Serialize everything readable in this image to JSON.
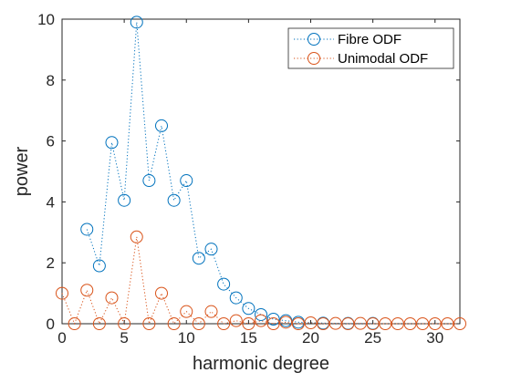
{
  "chart_data": {
    "type": "line",
    "xlabel": "harmonic degree",
    "ylabel": "power",
    "xlim": [
      0,
      32
    ],
    "ylim": [
      0,
      10
    ],
    "xticks": [
      "0",
      "5",
      "10",
      "15",
      "20",
      "25",
      "30"
    ],
    "yticks": [
      "0",
      "2",
      "4",
      "6",
      "8",
      "10"
    ],
    "grid": false,
    "legend_position": "top-right",
    "series": [
      {
        "name": "Fibre ODF",
        "color": "#0072BD",
        "marker": "circle",
        "line_style": "dotted",
        "x": [
          2,
          3,
          4,
          5,
          6,
          7,
          8,
          9,
          10,
          11,
          12,
          13,
          14,
          15,
          16,
          17,
          18,
          19,
          21,
          23,
          25
        ],
        "values": [
          3.1,
          1.9,
          5.95,
          4.05,
          9.9,
          4.7,
          6.5,
          4.05,
          4.7,
          2.15,
          2.45,
          1.3,
          0.85,
          0.5,
          0.3,
          0.15,
          0.1,
          0.05,
          0.02,
          0.01,
          0.01
        ]
      },
      {
        "name": "Unimodal ODF",
        "color": "#D95319",
        "marker": "circle",
        "line_style": "dotted",
        "x": [
          0,
          1,
          2,
          3,
          4,
          5,
          6,
          7,
          8,
          9,
          10,
          11,
          12,
          13,
          14,
          15,
          16,
          17,
          18,
          19,
          20,
          21,
          22,
          23,
          24,
          25,
          26,
          27,
          28,
          29,
          30,
          31,
          32
        ],
        "values": [
          1.0,
          0.0,
          1.1,
          0.0,
          0.85,
          0.0,
          2.85,
          0.0,
          1.0,
          0.0,
          0.4,
          0.0,
          0.4,
          0.0,
          0.1,
          0.0,
          0.1,
          0.0,
          0.05,
          0.0,
          0.03,
          0.0,
          0.01,
          0.0,
          0.01,
          0.0,
          0.0,
          0.0,
          0.0,
          0.0,
          0.0,
          0.0,
          0.0
        ]
      }
    ]
  }
}
